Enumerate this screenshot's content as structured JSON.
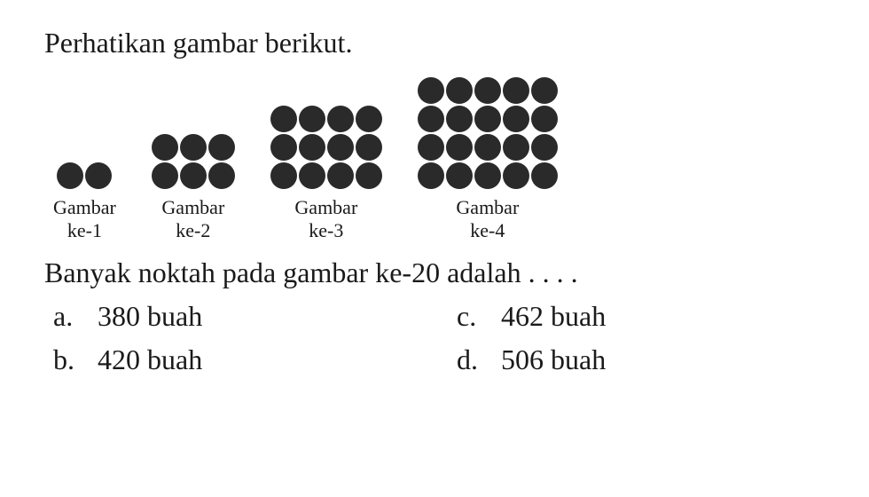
{
  "instruction": "Perhatikan gambar berikut.",
  "figures": [
    {
      "rows": 1,
      "cols": 2,
      "dot_size": 30,
      "label_line1": "Gambar",
      "label_line2": "ke-1"
    },
    {
      "rows": 2,
      "cols": 3,
      "dot_size": 30,
      "label_line1": "Gambar",
      "label_line2": "ke-2"
    },
    {
      "rows": 3,
      "cols": 4,
      "dot_size": 30,
      "label_line1": "Gambar",
      "label_line2": "ke-3"
    },
    {
      "rows": 4,
      "cols": 5,
      "dot_size": 30,
      "label_line1": "Gambar",
      "label_line2": "ke-4"
    }
  ],
  "question": "Banyak noktah pada gambar ke-20 adalah . . . .",
  "options": {
    "a": {
      "letter": "a.",
      "text": "380 buah"
    },
    "b": {
      "letter": "b.",
      "text": "420 buah"
    },
    "c": {
      "letter": "c.",
      "text": "462 buah"
    },
    "d": {
      "letter": "d.",
      "text": "506 buah"
    }
  },
  "colors": {
    "dot_color": "#2a2a2a",
    "text_color": "#1a1a1a",
    "background": "#ffffff"
  },
  "typography": {
    "body_fontsize": 32,
    "label_fontsize": 22,
    "font_family": "Times New Roman"
  }
}
